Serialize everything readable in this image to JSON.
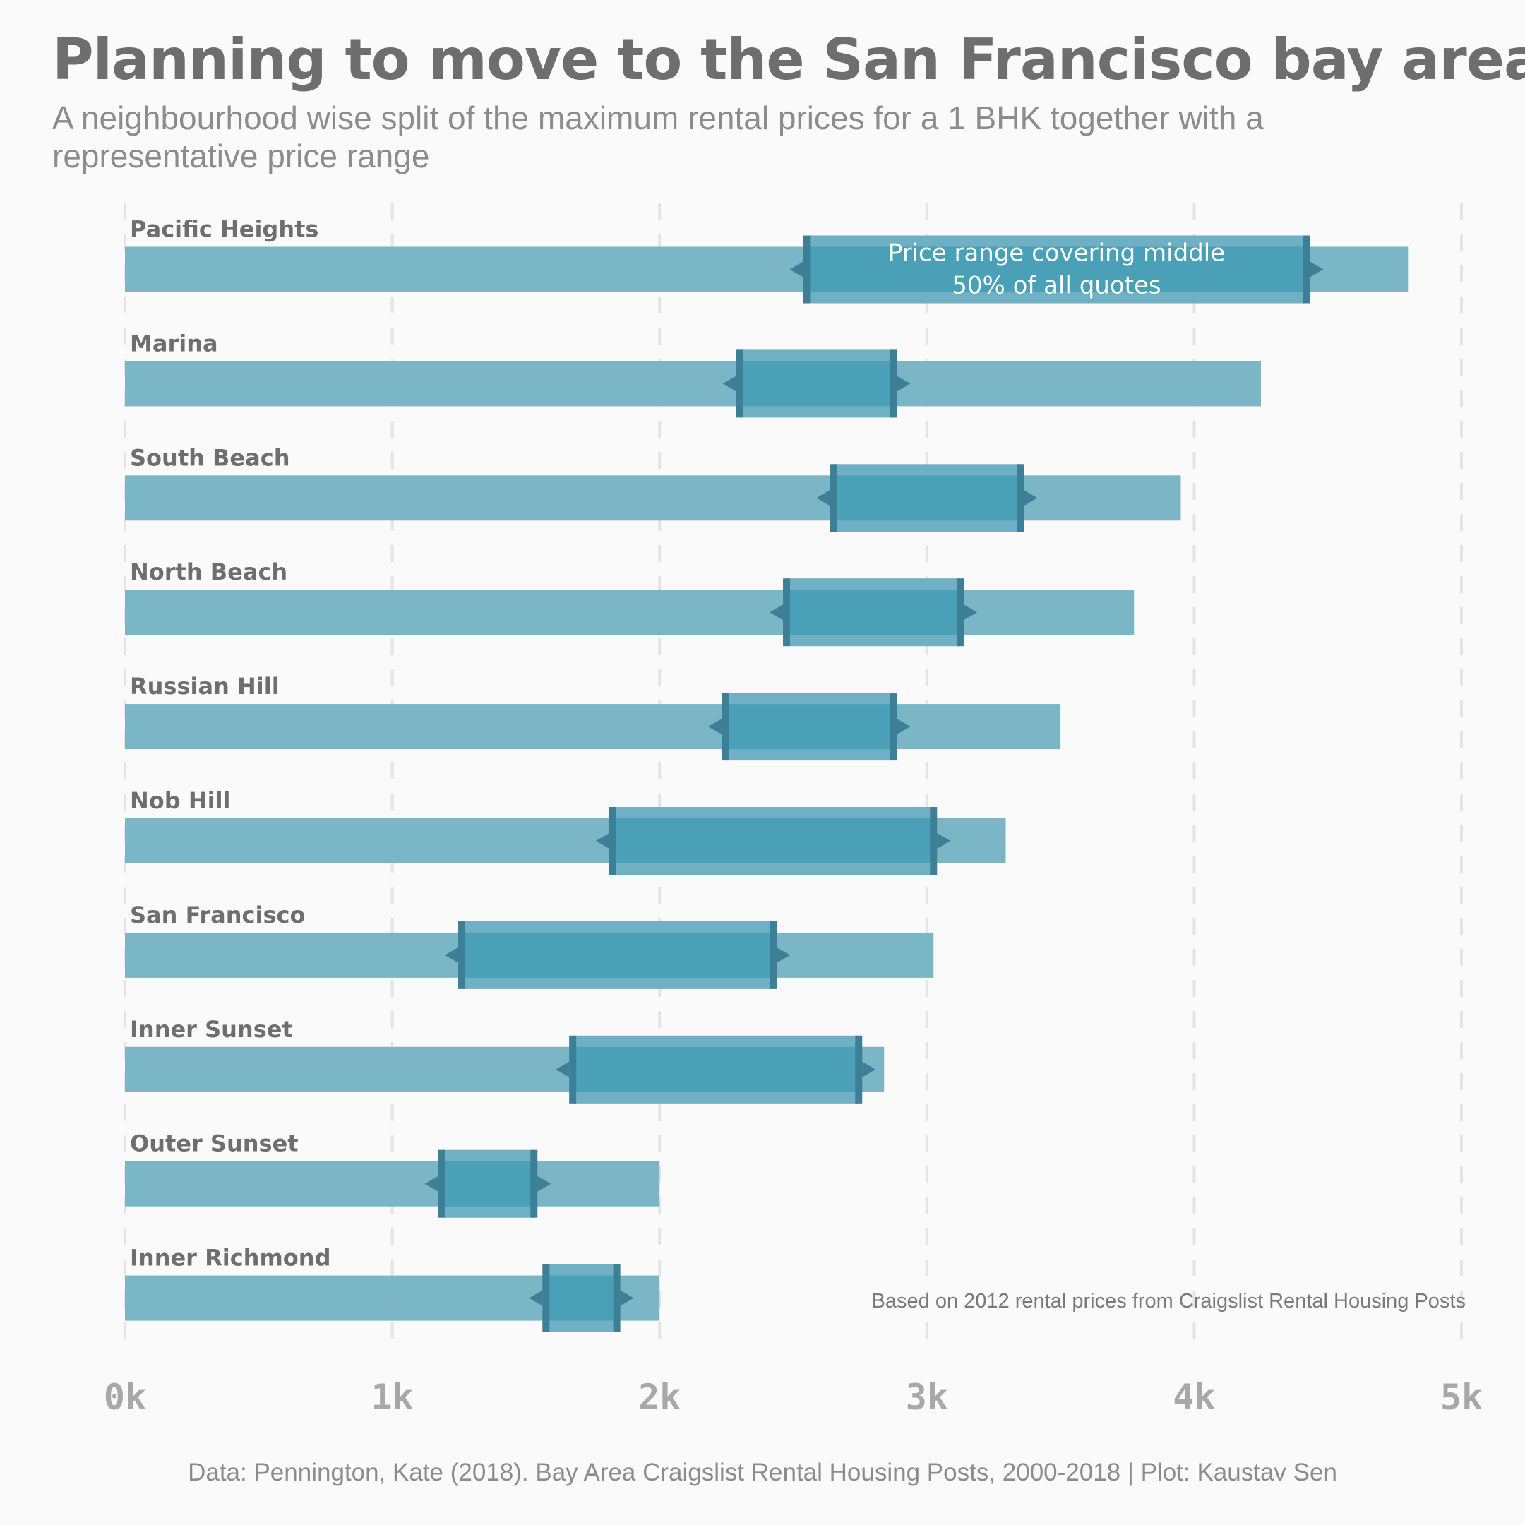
{
  "title": "Planning to move to the San Francisco bay area?",
  "subtitle": "A neighbourhood wise split of the maximum rental prices for a 1 BHK together with a representative price range",
  "caption": "Data: Pennington, Kate (2018). Bay Area Craigslist Rental Housing Posts, 2000-2018 | Plot: Kaustav Sen",
  "colors": {
    "max_bar": "#7ab6c6",
    "iqr_band": "#6fb0c4",
    "iqr_core": "#4aa0b6",
    "iqr_edge": "#3d7f96",
    "grid": "#e4e4e4",
    "label": "#6e6e6e",
    "tick": "#a8a8a8",
    "note": "#7a7a7a"
  },
  "chart_data": {
    "type": "bar",
    "orientation": "horizontal",
    "xlim": [
      0,
      5000
    ],
    "x_ticks": [
      "0k",
      "1k",
      "2k",
      "3k",
      "4k",
      "5k"
    ],
    "grid": "vertical dashed",
    "categories": [
      "Pacific Heights",
      "Marina",
      "South Beach",
      "North Beach",
      "Russian Hill",
      "Nob Hill",
      "San Francisco",
      "Inner Sunset",
      "Outer Sunset",
      "Inner Richmond"
    ],
    "series": [
      {
        "name": "",
        "values": [
          4800,
          4250,
          3950,
          3775,
          3500,
          3295,
          3025,
          2840,
          2000,
          2000
        ]
      }
    ],
    "ranges": [
      {
        "low": 2550,
        "high": 4420
      },
      {
        "low": 2300,
        "high": 2875
      },
      {
        "low": 2650,
        "high": 3350
      },
      {
        "low": 2475,
        "high": 3125
      },
      {
        "low": 2245,
        "high": 2875
      },
      {
        "low": 1825,
        "high": 3025
      },
      {
        "low": 1260,
        "high": 2425
      },
      {
        "low": 1675,
        "high": 2745
      },
      {
        "low": 1185,
        "high": 1530
      },
      {
        "low": 1575,
        "high": 1840
      }
    ],
    "annotations": [
      "Price range covering middle\n50% of all quotes",
      "Based on 2012 rental prices from Craigslist Rental Housing Posts"
    ]
  }
}
